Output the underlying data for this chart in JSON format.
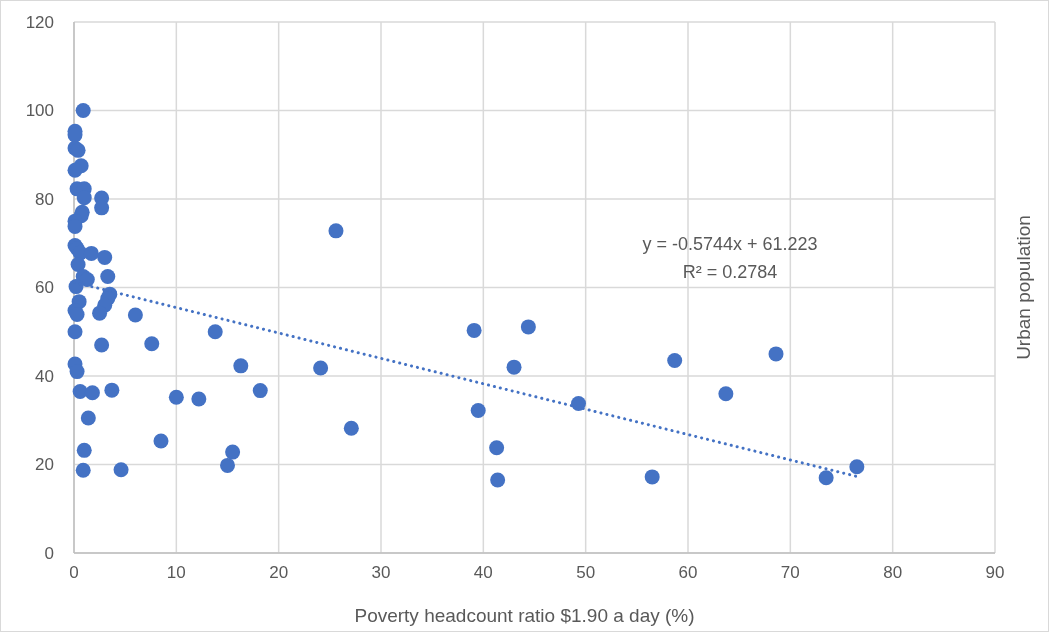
{
  "chart_data": {
    "type": "scatter",
    "xlabel": "Poverty headcount ratio $1.90 a day (%)",
    "ylabel": "Urban population",
    "xlim": [
      0,
      90
    ],
    "xticks": [
      0,
      10,
      20,
      30,
      40,
      50,
      60,
      70,
      80,
      90
    ],
    "ylim": [
      0,
      120
    ],
    "yticks": [
      0,
      20,
      40,
      60,
      80,
      100,
      120
    ],
    "grid": true,
    "annotations": [
      "y = -0.5744x + 61.223",
      "R² = 0.2784"
    ],
    "series": [
      {
        "color": "#4472c4",
        "marker": "circle",
        "x": [
          0.9,
          0.1,
          0.1,
          0.1,
          0.4,
          0.7,
          0.1,
          0.3,
          1.0,
          1.0,
          2.7,
          2.7,
          0.8,
          0.7,
          0.1,
          0.1,
          0.1,
          0.3,
          0.6,
          1.7,
          3.0,
          0.4,
          3.3,
          0.9,
          1.3,
          0.2,
          3.5,
          3.3,
          0.5,
          3.0,
          2.5,
          0.1,
          0.3,
          0.1,
          2.7,
          0.1,
          0.3,
          0.6,
          1.8,
          3.7,
          1.4,
          1.0,
          0.9,
          4.6,
          6.0,
          7.6,
          13.8,
          8.5,
          10.0,
          12.2,
          15.0,
          15.5,
          16.3,
          18.2,
          24.1,
          25.6,
          27.1,
          39.1,
          39.5,
          41.3,
          41.4,
          43.0,
          44.4,
          49.3,
          56.5,
          58.7,
          63.7,
          68.6,
          73.5,
          76.5
        ],
        "values": [
          100,
          95.3,
          94.5,
          91.5,
          91,
          87.5,
          86.5,
          82.3,
          82.3,
          80.3,
          80.2,
          78,
          77,
          76.2,
          75,
          73.8,
          69.5,
          68.8,
          67.8,
          67.7,
          66.8,
          65.2,
          62.5,
          62.5,
          61.8,
          60.2,
          58.5,
          57.5,
          56.8,
          56,
          54.2,
          54.8,
          53.9,
          50,
          47,
          42.7,
          41,
          36.5,
          36.2,
          36.8,
          30.5,
          23.2,
          18.7,
          18.8,
          53.8,
          47.3,
          50,
          25.3,
          35.2,
          34.8,
          19.8,
          22.8,
          42.3,
          36.7,
          41.8,
          72.8,
          28.2,
          50.3,
          32.2,
          23.8,
          16.5,
          42,
          51.1,
          33.8,
          17.2,
          43.5,
          36,
          45,
          17,
          19.5
        ]
      },
      {
        "type": "line",
        "color": "#4472c4",
        "line_style": "dotted",
        "x": [
          0,
          76.5
        ],
        "values": [
          61.2,
          17.3
        ]
      }
    ]
  }
}
